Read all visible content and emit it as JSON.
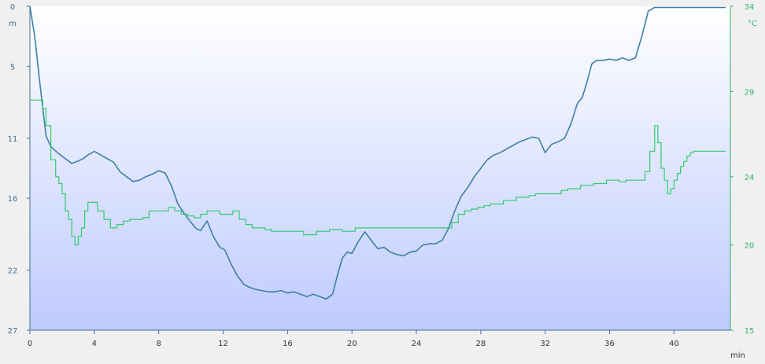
{
  "chart_data": {
    "type": "line",
    "title": "",
    "xlabel": "min",
    "y_left_label": "m",
    "y_right_label": "°C",
    "xlim": [
      0,
      43.5
    ],
    "y_left_lim": [
      0,
      27
    ],
    "y_left_inverted": true,
    "y_right_lim": [
      15,
      34
    ],
    "x_ticks": [
      "0",
      "4",
      "8",
      "12",
      "16",
      "20",
      "24",
      "28",
      "32",
      "36",
      "40"
    ],
    "y_left_ticks": [
      "0",
      "5",
      "11",
      "16",
      "22",
      "27"
    ],
    "y_right_ticks": [
      "34",
      "29",
      "24",
      "20",
      "15"
    ],
    "grid": false,
    "colors": {
      "depth": "#3f7fa8",
      "temperature": "#2ecc71",
      "background_top": "#ffffff",
      "background_bottom": "#bfcbff",
      "axis_left": "#3f6f94",
      "axis_right": "#2fb56c"
    },
    "series": [
      {
        "axis": "left",
        "x": [
          0,
          0.3,
          0.6,
          1.0,
          1.3,
          1.8,
          2.2,
          2.6,
          3.0,
          3.3,
          3.6,
          4.0,
          4.4,
          4.8,
          5.2,
          5.6,
          6.0,
          6.4,
          6.8,
          7.2,
          7.6,
          8.0,
          8.4,
          8.8,
          9.2,
          9.6,
          10.0,
          10.3,
          10.6,
          11.0,
          11.4,
          11.8,
          12.1,
          12.5,
          12.9,
          13.3,
          13.6,
          14.0,
          14.4,
          14.8,
          15.2,
          15.6,
          16.0,
          16.4,
          16.8,
          17.2,
          17.6,
          18.0,
          18.4,
          18.8,
          19.1,
          19.4,
          19.7,
          20.0,
          20.4,
          20.8,
          21.2,
          21.6,
          22.0,
          22.4,
          22.8,
          23.2,
          23.6,
          24.0,
          24.4,
          24.8,
          25.2,
          25.6,
          26.0,
          26.4,
          26.8,
          27.2,
          27.6,
          28.0,
          28.4,
          28.8,
          29.2,
          29.6,
          30.0,
          30.4,
          30.8,
          31.2,
          31.6,
          32.0,
          32.4,
          32.8,
          33.2,
          33.6,
          34.0,
          34.3,
          34.6,
          34.9,
          35.2,
          35.6,
          36.0,
          36.4,
          36.8,
          37.2,
          37.6,
          38.0,
          38.4,
          38.8,
          39.2,
          39.6,
          40.0,
          40.4,
          40.8,
          41.2,
          41.6,
          42.0,
          42.4,
          42.8,
          43.2
        ],
        "values": [
          0,
          2.5,
          6.2,
          10.8,
          11.7,
          12.3,
          12.7,
          13.1,
          12.9,
          12.7,
          12.4,
          12.1,
          12.4,
          12.7,
          13.0,
          13.8,
          14.2,
          14.6,
          14.5,
          14.2,
          14.0,
          13.7,
          13.9,
          15.0,
          16.5,
          17.3,
          18.0,
          18.5,
          18.7,
          17.9,
          19.2,
          20.1,
          20.3,
          21.5,
          22.5,
          23.2,
          23.4,
          23.6,
          23.7,
          23.8,
          23.8,
          23.7,
          23.9,
          23.8,
          24.0,
          24.2,
          24.0,
          24.2,
          24.4,
          24.0,
          22.4,
          21.0,
          20.5,
          20.6,
          19.6,
          18.8,
          19.5,
          20.2,
          20.1,
          20.5,
          20.7,
          20.8,
          20.5,
          20.4,
          19.9,
          19.8,
          19.8,
          19.5,
          18.5,
          17.0,
          15.8,
          15.1,
          14.2,
          13.5,
          12.8,
          12.4,
          12.2,
          11.9,
          11.6,
          11.3,
          11.1,
          10.9,
          11.0,
          12.2,
          11.5,
          11.3,
          11.0,
          9.8,
          8.1,
          7.6,
          6.3,
          4.8,
          4.5,
          4.5,
          4.4,
          4.5,
          4.3,
          4.5,
          4.3,
          2.5,
          0.4,
          0.1,
          0.1,
          0.1,
          0.1,
          0.1,
          0.1,
          0.1,
          0.1,
          0.1,
          0.1,
          0.1,
          0.1
        ]
      },
      {
        "axis": "right",
        "x": [
          0,
          0.4,
          0.8,
          1.0,
          1.3,
          1.6,
          1.8,
          2.0,
          2.2,
          2.4,
          2.6,
          2.8,
          3.0,
          3.2,
          3.4,
          3.6,
          3.8,
          4.2,
          4.6,
          5.0,
          5.4,
          5.8,
          6.2,
          6.6,
          7.0,
          7.4,
          7.8,
          8.2,
          8.6,
          9.0,
          9.4,
          9.8,
          10.2,
          10.6,
          11.0,
          11.4,
          11.8,
          12.2,
          12.6,
          13.0,
          13.4,
          13.8,
          14.2,
          14.6,
          15.0,
          15.4,
          15.8,
          16.2,
          16.6,
          17.0,
          17.4,
          17.8,
          18.2,
          18.6,
          19.0,
          19.4,
          19.8,
          20.2,
          20.6,
          21.0,
          21.4,
          21.8,
          22.2,
          22.6,
          23.0,
          23.4,
          23.8,
          24.2,
          24.6,
          25.0,
          25.4,
          25.8,
          26.2,
          26.6,
          27.0,
          27.4,
          27.8,
          28.2,
          28.6,
          29.0,
          29.4,
          29.8,
          30.2,
          30.6,
          31.0,
          31.4,
          31.8,
          32.2,
          32.6,
          33.0,
          33.4,
          33.8,
          34.2,
          34.6,
          35.0,
          35.4,
          35.8,
          36.2,
          36.6,
          37.0,
          37.4,
          37.8,
          38.2,
          38.5,
          38.8,
          39.0,
          39.2,
          39.4,
          39.6,
          39.8,
          40.0,
          40.2,
          40.4,
          40.6,
          40.8,
          41.0,
          41.2,
          41.4,
          41.6,
          41.8,
          42.0,
          42.4,
          42.8,
          43.2
        ],
        "values": [
          28.5,
          28.5,
          28.0,
          27.0,
          25.0,
          24.0,
          23.6,
          23.0,
          22.0,
          21.5,
          20.5,
          20.0,
          20.5,
          21.0,
          22.0,
          22.5,
          22.5,
          22.0,
          21.5,
          21.0,
          21.2,
          21.4,
          21.5,
          21.5,
          21.6,
          22.0,
          22.0,
          22.0,
          22.2,
          22.0,
          21.8,
          21.7,
          21.6,
          21.8,
          22.0,
          22.0,
          21.8,
          21.8,
          22.0,
          21.5,
          21.2,
          21.0,
          21.0,
          20.9,
          20.8,
          20.8,
          20.8,
          20.8,
          20.8,
          20.6,
          20.6,
          20.8,
          20.8,
          20.9,
          20.9,
          20.8,
          20.8,
          21.0,
          21.0,
          21.0,
          21.0,
          21.0,
          21.0,
          21.0,
          21.0,
          21.0,
          21.0,
          21.0,
          21.0,
          21.0,
          21.0,
          21.0,
          21.3,
          21.8,
          22.0,
          22.1,
          22.2,
          22.3,
          22.4,
          22.4,
          22.6,
          22.6,
          22.8,
          22.8,
          22.9,
          23.0,
          23.0,
          23.0,
          23.0,
          23.2,
          23.3,
          23.3,
          23.5,
          23.5,
          23.6,
          23.6,
          23.8,
          23.8,
          23.7,
          23.8,
          23.8,
          23.8,
          24.3,
          25.5,
          27.0,
          26.0,
          24.5,
          23.8,
          23.0,
          23.3,
          23.8,
          24.2,
          24.6,
          24.9,
          25.2,
          25.4,
          25.5,
          25.5,
          25.5,
          25.5,
          25.5,
          25.5,
          25.5,
          25.5
        ]
      }
    ]
  }
}
